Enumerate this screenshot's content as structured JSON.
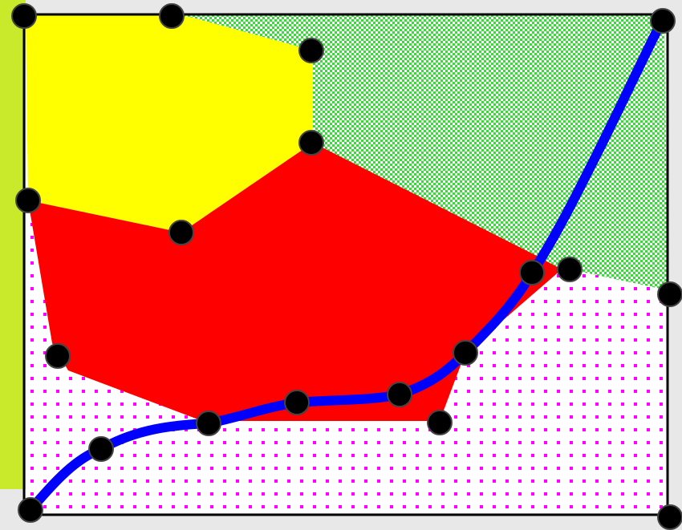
{
  "diagram": {
    "type": "region-partition",
    "colors": {
      "background": "#e8e8e8",
      "side_band": "#c8ea2a",
      "yellow_region": "#ffff00",
      "green_region_dots": "#33dd33",
      "red_region": "#ff0000",
      "pink_region_dots": "#ff00ff",
      "curve": "#0000ff",
      "border": "#000000",
      "node": "#000000"
    },
    "regions": [
      "yellow-region",
      "green-region",
      "red-region",
      "pink-region"
    ],
    "node_count": 20,
    "curve": "blue-path"
  }
}
